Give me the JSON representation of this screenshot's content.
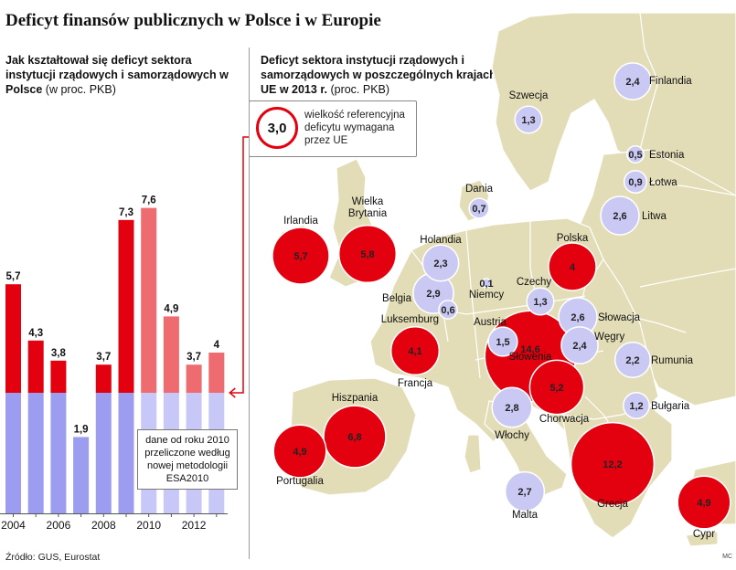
{
  "title": "Deficyt finansów publicznych w Polsce i w Europie",
  "left_panel": {
    "subtitle_bold": "Jak kształtował się deficyt sektora instytucji rządowych i samorządowych w Polsce",
    "subtitle_unit": "(w proc. PKB)",
    "note": "dane od roku 2010 przeliczone według nowej metodologii ESA2010"
  },
  "right_panel": {
    "subtitle_bold": "Deficyt sektora instytucji rządowych i samorządowych w poszczególnych krajach UE w 2013 r.",
    "subtitle_unit": "(proc. PKB)",
    "legend_value": "3,0",
    "legend_text": "wielkość referencyjna deficytu wymagana przez UE"
  },
  "source": "Źródło: GUS, Eurostat",
  "credit": "MC",
  "colors": {
    "red": "#e3000f",
    "red_light": "#ee6b6f",
    "blue": "#9c9cf0",
    "blue_light": "#c8c8f8",
    "land": "#e2ddb6",
    "sea": "#ffffff",
    "bubble_blue": "#c9c9f3"
  },
  "chart_data": [
    {
      "type": "bar",
      "categories": [
        "2004",
        "2005",
        "2006",
        "2007",
        "2008",
        "2009",
        "2010",
        "2011",
        "2012",
        "2013"
      ],
      "x_tick_labels": [
        "2004",
        "2006",
        "2008",
        "2010",
        "2012"
      ],
      "values": [
        5.7,
        4.3,
        3.8,
        1.9,
        3.7,
        7.3,
        7.6,
        4.9,
        3.7,
        4.0
      ],
      "value_labels": [
        "5,7",
        "4,3",
        "3,8",
        "1,9",
        "3,7",
        "7,3",
        "7,6",
        "4,9",
        "3,7",
        "4"
      ],
      "reference_value": 3.0,
      "ylim": [
        0,
        10.5
      ],
      "esa2010_from": "2010"
    },
    {
      "type": "bubble-map",
      "points": [
        {
          "country": "Finlandia",
          "value": 2.4,
          "label": "2,4",
          "above_reference": false
        },
        {
          "country": "Szwecja",
          "value": 1.3,
          "label": "1,3",
          "above_reference": false
        },
        {
          "country": "Estonia",
          "value": 0.5,
          "label": "0,5",
          "above_reference": false
        },
        {
          "country": "Łotwa",
          "value": 0.9,
          "label": "0,9",
          "above_reference": false
        },
        {
          "country": "Litwa",
          "value": 2.6,
          "label": "2,6",
          "above_reference": false
        },
        {
          "country": "Dania",
          "value": 0.7,
          "label": "0,7",
          "above_reference": false
        },
        {
          "country": "Irlandia",
          "value": 5.7,
          "label": "5,7",
          "above_reference": true
        },
        {
          "country": "Wielka Brytania",
          "value": 5.8,
          "label": "5,8",
          "above_reference": true
        },
        {
          "country": "Holandia",
          "value": 2.3,
          "label": "2,3",
          "above_reference": false
        },
        {
          "country": "Niemcy",
          "value": 0.1,
          "label": "0,1",
          "above_reference": false
        },
        {
          "country": "Polska",
          "value": 4.0,
          "label": "4",
          "above_reference": true
        },
        {
          "country": "Belgia",
          "value": 2.9,
          "label": "2,9",
          "above_reference": false
        },
        {
          "country": "Luksemburg",
          "value": 0.6,
          "label": "0,6",
          "above_reference": false
        },
        {
          "country": "Czechy",
          "value": 1.3,
          "label": "1,3",
          "above_reference": false
        },
        {
          "country": "Słowacja",
          "value": 2.6,
          "label": "2,6",
          "above_reference": false
        },
        {
          "country": "Austria",
          "value": 1.5,
          "label": "1,5",
          "above_reference": false
        },
        {
          "country": "Węgry",
          "value": 2.4,
          "label": "2,4",
          "above_reference": false
        },
        {
          "country": "Słowenia",
          "value": 14.6,
          "label": "14,6",
          "above_reference": true
        },
        {
          "country": "Francja",
          "value": 4.1,
          "label": "4,1",
          "above_reference": true
        },
        {
          "country": "Rumunia",
          "value": 2.2,
          "label": "2,2",
          "above_reference": false
        },
        {
          "country": "Chorwacja",
          "value": 5.2,
          "label": "5,2",
          "above_reference": true
        },
        {
          "country": "Bułgaria",
          "value": 1.2,
          "label": "1,2",
          "above_reference": false
        },
        {
          "country": "Hiszpania",
          "value": 6.8,
          "label": "6,8",
          "above_reference": true
        },
        {
          "country": "Włochy",
          "value": 2.8,
          "label": "2,8",
          "above_reference": false
        },
        {
          "country": "Portugalia",
          "value": 4.9,
          "label": "4,9",
          "above_reference": true
        },
        {
          "country": "Grecja",
          "value": 12.2,
          "label": "12,2",
          "above_reference": true
        },
        {
          "country": "Malta",
          "value": 2.7,
          "label": "2,7",
          "above_reference": false
        },
        {
          "country": "Cypr",
          "value": 4.9,
          "label": "4,9",
          "above_reference": true
        }
      ]
    }
  ]
}
